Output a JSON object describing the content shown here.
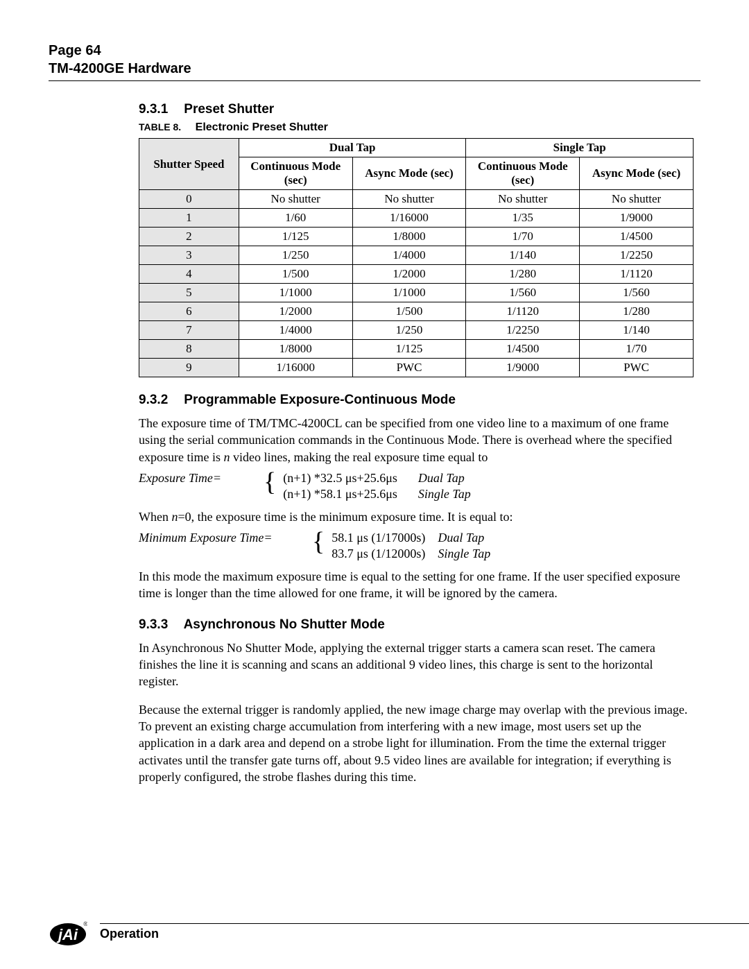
{
  "header": {
    "page_label": "Page 64",
    "product": "TM-4200GE Hardware"
  },
  "section_931": {
    "num": "9.3.1",
    "title": "Preset Shutter"
  },
  "table8": {
    "caption_label": "TABLE 8.",
    "caption_title": "Electronic Preset Shutter",
    "group_dual": "Dual Tap",
    "group_single": "Single Tap",
    "col_ss": "Shutter Speed",
    "col_cont": "Continuous Mode (sec)",
    "col_async": "Async Mode (sec)",
    "rows": [
      {
        "ss": "0",
        "d_cont": "No shutter",
        "d_async": "No shutter",
        "s_cont": "No shutter",
        "s_async": "No shutter"
      },
      {
        "ss": "1",
        "d_cont": "1/60",
        "d_async": "1/16000",
        "s_cont": "1/35",
        "s_async": "1/9000"
      },
      {
        "ss": "2",
        "d_cont": "1/125",
        "d_async": "1/8000",
        "s_cont": "1/70",
        "s_async": "1/4500"
      },
      {
        "ss": "3",
        "d_cont": "1/250",
        "d_async": "1/4000",
        "s_cont": "1/140",
        "s_async": "1/2250"
      },
      {
        "ss": "4",
        "d_cont": "1/500",
        "d_async": "1/2000",
        "s_cont": "1/280",
        "s_async": "1/1120"
      },
      {
        "ss": "5",
        "d_cont": "1/1000",
        "d_async": "1/1000",
        "s_cont": "1/560",
        "s_async": "1/560"
      },
      {
        "ss": "6",
        "d_cont": "1/2000",
        "d_async": "1/500",
        "s_cont": "1/1120",
        "s_async": "1/280"
      },
      {
        "ss": "7",
        "d_cont": "1/4000",
        "d_async": "1/250",
        "s_cont": "1/2250",
        "s_async": "1/140"
      },
      {
        "ss": "8",
        "d_cont": "1/8000",
        "d_async": "1/125",
        "s_cont": "1/4500",
        "s_async": "1/70"
      },
      {
        "ss": "9",
        "d_cont": "1/16000",
        "d_async": "PWC",
        "s_cont": "1/9000",
        "s_async": "PWC"
      }
    ]
  },
  "section_932": {
    "num": "9.3.2",
    "title": "Programmable Exposure-Continuous Mode",
    "para1_a": "The exposure time of TM/TMC-4200CL can be specified from one video line to a maximum of one frame using the serial communication commands in the Continuous Mode. There is overhead where the specified exposure time is ",
    "para1_b": "n",
    "para1_c": " video lines, making the real exposure time equal to",
    "formula1": {
      "label": "Exposure Time=",
      "line1": "(n+1) *32.5 μs+25.6μs",
      "tag1": "Dual Tap",
      "line2": "(n+1) *58.1 μs+25.6μs",
      "tag2": "Single Tap"
    },
    "para2_a": "When ",
    "para2_b": "n",
    "para2_c": "=0, the exposure time is the minimum exposure time. It is equal to:",
    "formula2": {
      "label": "Minimum Exposure Time=",
      "line1": "58.1 μs (1/17000s)",
      "tag1": "Dual Tap",
      "line2": "83.7 μs (1/12000s)",
      "tag2": "Single Tap"
    },
    "para3": "In this mode the maximum exposure time is equal to the setting for one frame. If the user specified exposure time is longer than the time allowed for one frame, it will be ignored by the camera."
  },
  "section_933": {
    "num": "9.3.3",
    "title": "Asynchronous No Shutter Mode",
    "para1": "In Asynchronous No Shutter Mode, applying the external trigger starts a camera scan reset. The camera finishes the line it is scanning and scans an additional  9 video lines, this charge is sent to the horizontal register.",
    "para2": "Because the external trigger is randomly applied, the new image charge may overlap with the previous image. To prevent an existing charge accumulation from interfering with a new image, most users set up the application in a dark area and depend on a strobe light for illumination. From the time the external trigger activates until the transfer gate turns off, about  9.5 video lines are available for integration; if everything is properly configured, the strobe flashes during this time."
  },
  "footer": {
    "operation": "Operation"
  }
}
